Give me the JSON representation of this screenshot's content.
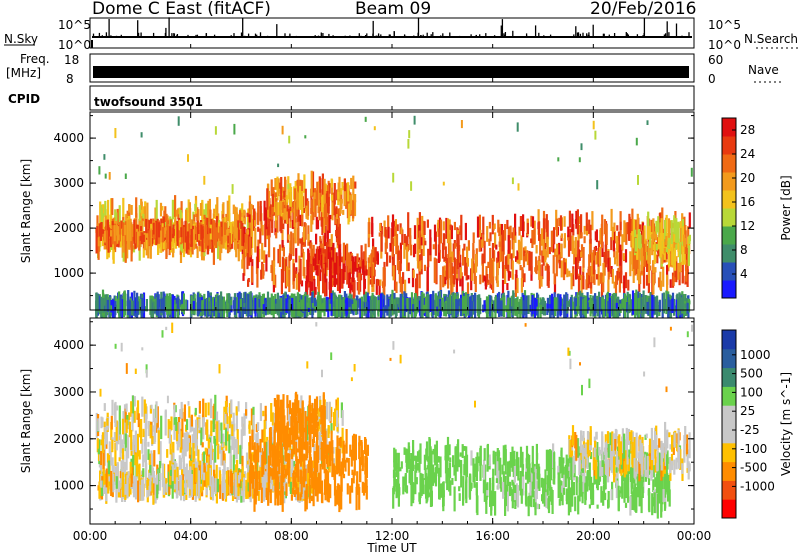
{
  "header": {
    "title": "Dome C East (fitACF)",
    "beam": "Beam 09",
    "date": "20/Feb/2016"
  },
  "status_panels": {
    "nsky_label": "N.Sky",
    "nsky_ticks": [
      "10^5",
      "10^0"
    ],
    "nsearch_label": "N.Search",
    "nsearch_ticks": [
      "10^5",
      "10^0"
    ],
    "freq_label": [
      "Freq.",
      "[MHz]"
    ],
    "freq_ticks": [
      "18",
      "8"
    ],
    "nave_label": "Nave",
    "nave_ticks": [
      "60",
      "0"
    ],
    "cpid_label": "CPID",
    "cpid_value": "twofsound 3501"
  },
  "colors": {
    "power_scale": [
      "#1a1aff",
      "#2850b8",
      "#3f8d6a",
      "#4aa84a",
      "#b8d838",
      "#f3c21c",
      "#f39a1c",
      "#f06a14",
      "#e83a10",
      "#e01010"
    ],
    "velocity_scale": [
      "#ff0000",
      "#f24f10",
      "#ff8c00",
      "#ffc000",
      "#c8c8c8",
      "#c8c8c8",
      "#6ad24c",
      "#3a8a6e",
      "#2a5e9e",
      "#1a3aa8"
    ]
  },
  "chart_data": [
    {
      "type": "heatmap",
      "parameter": "Power",
      "xlabel": "",
      "ylabel": "Slant Range [km]",
      "x_ticks": [
        "00:00",
        "04:00",
        "08:00",
        "12:00",
        "16:00",
        "20:00",
        "00:00"
      ],
      "xlim_hours": [
        0,
        24
      ],
      "y_ticks": [
        1000,
        2000,
        3000,
        4000
      ],
      "ylim": [
        180,
        4580
      ],
      "colorbar": {
        "label": "Power [dB]",
        "ticks": [
          4,
          8,
          12,
          16,
          20,
          24,
          28
        ],
        "range": [
          0,
          30
        ]
      },
      "bands": [
        {
          "t0": 0.2,
          "t1": 6.5,
          "r0": 1450,
          "r1": 2500,
          "level": 18
        },
        {
          "t0": 0.2,
          "t1": 6.0,
          "r0": 1700,
          "r1": 2000,
          "level": 22
        },
        {
          "t0": 6.0,
          "t1": 10.0,
          "r0": 750,
          "r1": 2400,
          "level": 24
        },
        {
          "t0": 7.0,
          "t1": 10.5,
          "r0": 2300,
          "r1": 3000,
          "level": 21
        },
        {
          "t0": 8.5,
          "t1": 11.0,
          "r0": 600,
          "r1": 1500,
          "level": 27
        },
        {
          "t0": 11.0,
          "t1": 17.0,
          "r0": 650,
          "r1": 2100,
          "level": 24
        },
        {
          "t0": 17.0,
          "t1": 23.8,
          "r0": 700,
          "r1": 2200,
          "level": 23
        },
        {
          "t0": 21.5,
          "t1": 23.8,
          "r0": 1300,
          "r1": 2100,
          "level": 17
        },
        {
          "t0": 0.2,
          "t1": 23.8,
          "r0": 200,
          "r1": 350,
          "level": 7
        }
      ]
    },
    {
      "type": "heatmap",
      "parameter": "Velocity",
      "xlabel": "Time UT",
      "ylabel": "Slant Range [km]",
      "x_ticks": [
        "00:00",
        "04:00",
        "08:00",
        "12:00",
        "16:00",
        "20:00",
        "00:00"
      ],
      "xlim_hours": [
        0,
        24
      ],
      "y_ticks": [
        1000,
        2000,
        3000,
        4000
      ],
      "ylim": [
        180,
        4580
      ],
      "colorbar": {
        "label": "Velocity [m s^-1]",
        "ticks": [
          1000,
          500,
          100,
          25,
          -25,
          -100,
          -500,
          -1000
        ],
        "range": [
          -1000,
          1000
        ]
      },
      "bands": [
        {
          "t0": 0.2,
          "t1": 10.0,
          "r0": 1400,
          "r1": 2700,
          "level": 0
        },
        {
          "t0": 0.2,
          "t1": 9.0,
          "r0": 850,
          "r1": 1300,
          "level": 0
        },
        {
          "t0": 6.3,
          "t1": 11.0,
          "r0": 650,
          "r1": 2000,
          "level": -350
        },
        {
          "t0": 7.3,
          "t1": 9.3,
          "r0": 2000,
          "r1": 2800,
          "level": -300
        },
        {
          "t0": 12.0,
          "t1": 15.0,
          "r0": 700,
          "r1": 1800,
          "level": 250
        },
        {
          "t0": 15.0,
          "t1": 23.0,
          "r0": 550,
          "r1": 1700,
          "level": 200
        },
        {
          "t0": 19.0,
          "t1": 23.8,
          "r0": 1300,
          "r1": 2100,
          "level": 0
        }
      ]
    }
  ]
}
